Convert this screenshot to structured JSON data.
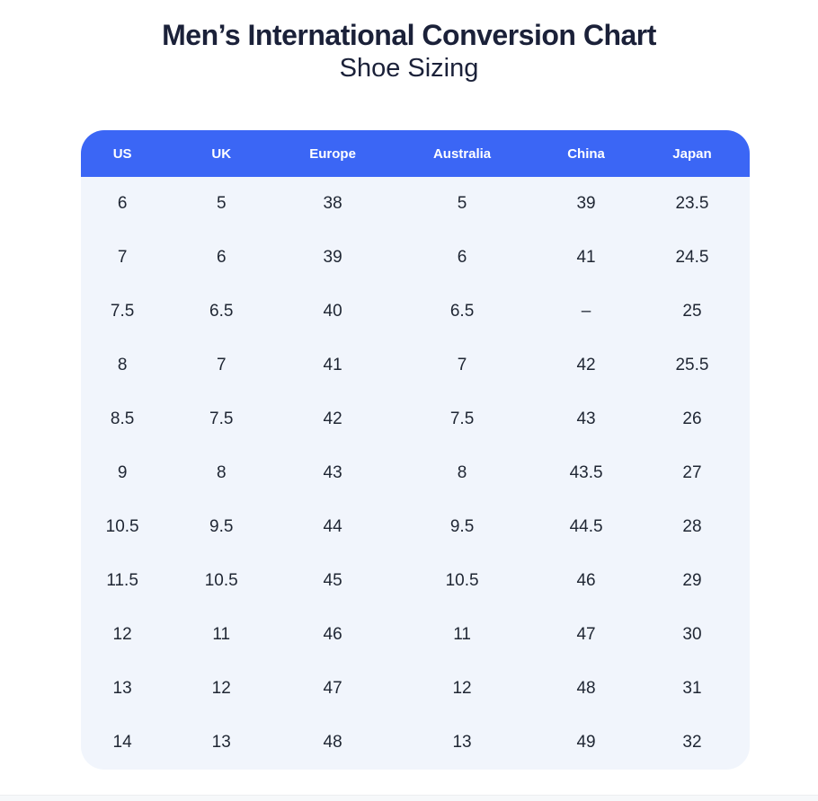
{
  "header": {
    "title": "Men’s International Conversion Chart",
    "subtitle": "Shoe Sizing"
  },
  "chart_data": {
    "type": "table",
    "title": "Men’s International Conversion Chart",
    "subtitle": "Shoe Sizing",
    "columns": [
      "US",
      "UK",
      "Europe",
      "Australia",
      "China",
      "Japan"
    ],
    "rows": [
      [
        "6",
        "5",
        "38",
        "5",
        "39",
        "23.5"
      ],
      [
        "7",
        "6",
        "39",
        "6",
        "41",
        "24.5"
      ],
      [
        "7.5",
        "6.5",
        "40",
        "6.5",
        "–",
        "25"
      ],
      [
        "8",
        "7",
        "41",
        "7",
        "42",
        "25.5"
      ],
      [
        "8.5",
        "7.5",
        "42",
        "7.5",
        "43",
        "26"
      ],
      [
        "9",
        "8",
        "43",
        "8",
        "43.5",
        "27"
      ],
      [
        "10.5",
        "9.5",
        "44",
        "9.5",
        "44.5",
        "28"
      ],
      [
        "11.5",
        "10.5",
        "45",
        "10.5",
        "46",
        "29"
      ],
      [
        "12",
        "11",
        "46",
        "11",
        "47",
        "30"
      ],
      [
        "13",
        "12",
        "47",
        "12",
        "48",
        "31"
      ],
      [
        "14",
        "13",
        "48",
        "13",
        "49",
        "32"
      ]
    ]
  },
  "colors": {
    "header_bg": "#3B66F5",
    "body_bg": "#F1F5FC",
    "header_text": "#FFFFFF",
    "cell_text": "#1F2633",
    "title_text": "#1B2139",
    "page_bg": "#FFFFFF"
  }
}
